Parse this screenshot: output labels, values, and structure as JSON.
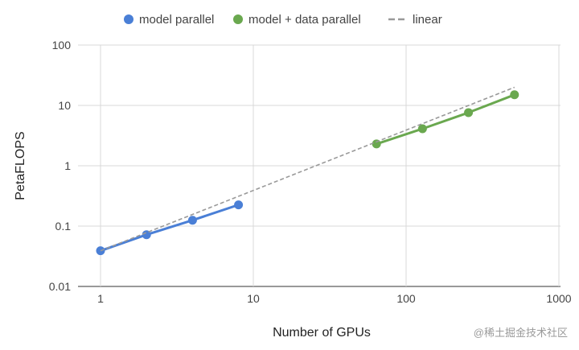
{
  "chart_data": {
    "type": "line",
    "xlabel": "Number of GPUs",
    "ylabel": "PetaFLOPS",
    "xscale": "log",
    "yscale": "log",
    "xlim": [
      1,
      1000
    ],
    "ylim": [
      0.01,
      100
    ],
    "x_ticks": [
      1,
      10,
      100,
      1000
    ],
    "x_tick_labels": [
      "1",
      "10",
      "100",
      "1000"
    ],
    "y_ticks": [
      0.01,
      0.1,
      1,
      10,
      100
    ],
    "y_tick_labels": [
      "0.01",
      "0.1",
      "1",
      "10",
      "100"
    ],
    "grid": true,
    "legend_position": "top",
    "series": [
      {
        "name": "model parallel",
        "color": "#4a7fd6",
        "style": "solid-markers",
        "x": [
          1,
          2,
          4,
          8
        ],
        "y": [
          0.039,
          0.072,
          0.125,
          0.225
        ]
      },
      {
        "name": "model + data parallel",
        "color": "#6aa84f",
        "style": "solid-markers",
        "x": [
          64,
          128,
          256,
          512
        ],
        "y": [
          2.3,
          4.1,
          7.6,
          15.0
        ]
      },
      {
        "name": "linear",
        "color": "#999999",
        "style": "dashed",
        "x": [
          1,
          512
        ],
        "y": [
          0.039,
          19.97
        ]
      }
    ]
  },
  "watermark": "@稀土掘金技术社区"
}
